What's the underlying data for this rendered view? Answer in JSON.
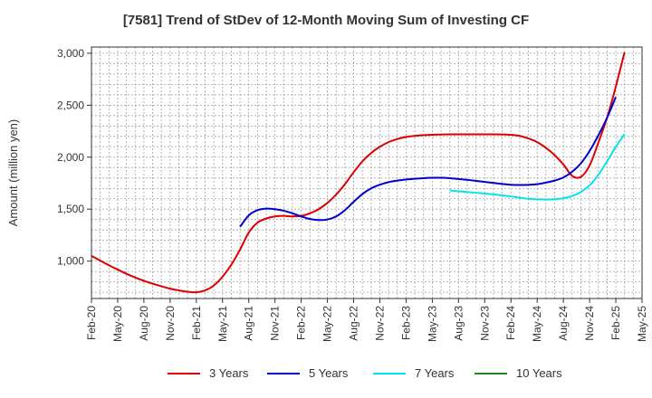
{
  "chart_data": {
    "type": "line",
    "title": "[7581]  Trend of StDev of 12-Month Moving Sum of Investing CF",
    "xlabel": "",
    "ylabel": "Amount (million yen)",
    "ylim": [
      640,
      3060
    ],
    "yticks": [
      1000,
      1500,
      2000,
      2500,
      3000
    ],
    "ytick_labels": [
      "1,000",
      "1,500",
      "2,000",
      "2,500",
      "3,000"
    ],
    "xtick_labels": [
      "Feb-20",
      "May-20",
      "Aug-20",
      "Nov-20",
      "Feb-21",
      "May-21",
      "Aug-21",
      "Nov-21",
      "Feb-22",
      "May-22",
      "Aug-22",
      "Nov-22",
      "Feb-23",
      "May-23",
      "Aug-23",
      "Nov-23",
      "Feb-24",
      "May-24",
      "Aug-24",
      "Nov-24",
      "Feb-25",
      "May-25"
    ],
    "grid": true,
    "legend_position": "bottom",
    "series": [
      {
        "name": "3 Years",
        "color": "#dd0000",
        "start": "Feb-20",
        "values": [
          1050,
          1005,
          960,
          918,
          878,
          842,
          810,
          782,
          758,
          735,
          718,
          705,
          700,
          718,
          765,
          850,
          965,
          1110,
          1275,
          1370,
          1410,
          1430,
          1435,
          1430,
          1435,
          1460,
          1500,
          1560,
          1640,
          1740,
          1855,
          1960,
          2040,
          2100,
          2145,
          2175,
          2195,
          2205,
          2212,
          2216,
          2218,
          2220,
          2220,
          2220,
          2220,
          2220,
          2220,
          2219,
          2215,
          2205,
          2180,
          2145,
          2090,
          2020,
          1930,
          1820,
          1810,
          1920,
          2140,
          2380,
          2680,
          3010
        ]
      },
      {
        "name": "5 Years",
        "color": "#0000cc",
        "start": "Jul-21",
        "values": [
          1330,
          1440,
          1490,
          1505,
          1500,
          1485,
          1460,
          1430,
          1405,
          1395,
          1400,
          1430,
          1490,
          1570,
          1645,
          1700,
          1735,
          1760,
          1775,
          1785,
          1792,
          1798,
          1802,
          1802,
          1798,
          1790,
          1782,
          1772,
          1762,
          1752,
          1742,
          1735,
          1732,
          1734,
          1740,
          1755,
          1775,
          1805,
          1860,
          1940,
          2060,
          2210,
          2380,
          2580
        ]
      },
      {
        "name": "7 Years",
        "color": "#00e5ee",
        "start": "Jul-23",
        "values": [
          1680,
          1672,
          1665,
          1658,
          1650,
          1642,
          1632,
          1622,
          1610,
          1600,
          1594,
          1592,
          1595,
          1605,
          1625,
          1665,
          1730,
          1830,
          1960,
          2100,
          2220
        ]
      },
      {
        "name": "10 Years",
        "color": "#228822",
        "start": "Feb-25",
        "values": []
      }
    ]
  }
}
